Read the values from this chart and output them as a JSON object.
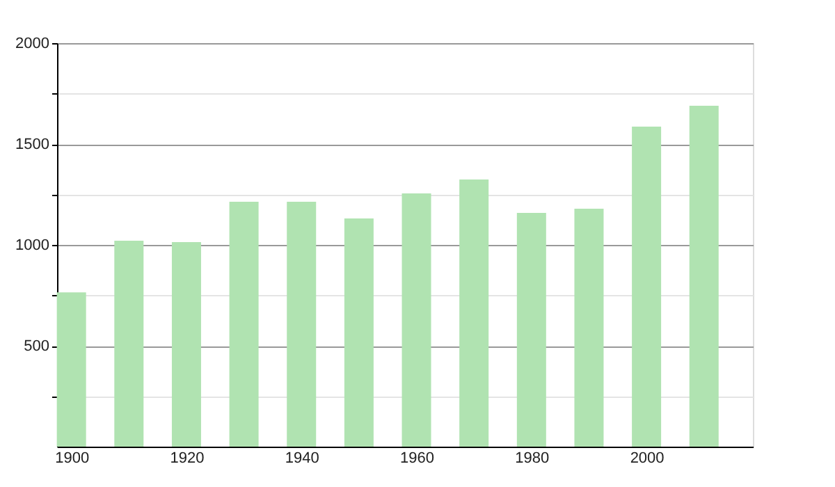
{
  "chart_data": {
    "type": "bar",
    "x": [
      1900,
      1910,
      1920,
      1930,
      1940,
      1950,
      1960,
      1970,
      1980,
      1990,
      2000,
      2010
    ],
    "values": [
      765,
      1021,
      1014,
      1214,
      1214,
      1131,
      1255,
      1324,
      1159,
      1179,
      1586,
      1690
    ],
    "color": "#b0e3b1",
    "xlim": [
      1897.5,
      2018.5
    ],
    "xticks": [
      1900,
      1920,
      1940,
      1960,
      1980,
      2000
    ],
    "ylim": [
      0,
      2000
    ],
    "yticks": [
      {
        "value": 250,
        "label": null
      },
      500,
      {
        "value": 750,
        "label": null
      },
      1000,
      {
        "value": 1250,
        "label": null
      },
      1500,
      {
        "value": 1750,
        "label": null
      },
      2000
    ],
    "grid": "y"
  }
}
